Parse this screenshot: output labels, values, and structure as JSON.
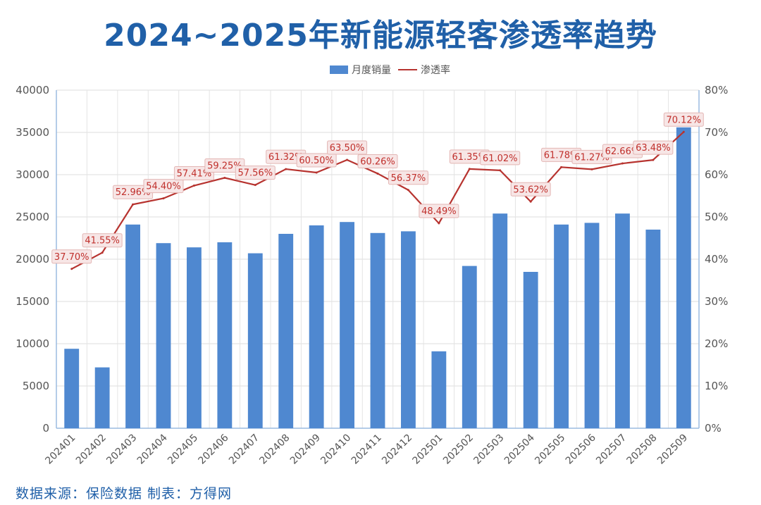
{
  "chart_data": {
    "type": "bar",
    "title": "2024~2025年新能源轻客渗透率趋势",
    "categories": [
      "202401",
      "202402",
      "202403",
      "202404",
      "202405",
      "202406",
      "202407",
      "202408",
      "202409",
      "202410",
      "202411",
      "202412",
      "202501",
      "202502",
      "202503",
      "202504",
      "202505",
      "202506",
      "202507",
      "202508",
      "202509"
    ],
    "series": [
      {
        "name": "月度销量",
        "type": "bar",
        "axis": "left",
        "color": "#4f88d0",
        "values": [
          9400,
          7200,
          24100,
          21900,
          21400,
          22000,
          20700,
          23000,
          24000,
          24400,
          23100,
          23300,
          9100,
          19200,
          25400,
          18500,
          24100,
          24300,
          25400,
          23500,
          35600
        ]
      },
      {
        "name": "渗透率",
        "type": "line",
        "axis": "right",
        "color": "#b7332f",
        "values": [
          37.7,
          41.55,
          52.96,
          54.4,
          57.41,
          59.25,
          57.56,
          61.32,
          60.5,
          63.5,
          60.26,
          56.37,
          48.49,
          61.35,
          61.02,
          53.62,
          61.78,
          61.27,
          62.66,
          63.48,
          70.12
        ],
        "labels": [
          "37.70%",
          "41.55%",
          "52.96%",
          "54.40%",
          "57.41%",
          "59.25%",
          "57.56%",
          "61.32%",
          "60.50%",
          "63.50%",
          "60.26%",
          "56.37%",
          "48.49%",
          "61.35%",
          "61.02%",
          "53.62%",
          "61.78%",
          "61.27%",
          "62.66%",
          "63.48%",
          "70.12%"
        ]
      }
    ],
    "ylim_left": [
      0,
      40000
    ],
    "yticks_left": [
      "0",
      "5000",
      "10000",
      "15000",
      "20000",
      "25000",
      "30000",
      "35000",
      "40000"
    ],
    "ylim_right": [
      0,
      80
    ],
    "yticks_right": [
      "0%",
      "10%",
      "20%",
      "30%",
      "40%",
      "50%",
      "60%",
      "70%",
      "80%"
    ],
    "grid": true,
    "legend_position": "top-center"
  },
  "footer": {
    "source": "数据来源：保险数据  制表：方得网"
  }
}
